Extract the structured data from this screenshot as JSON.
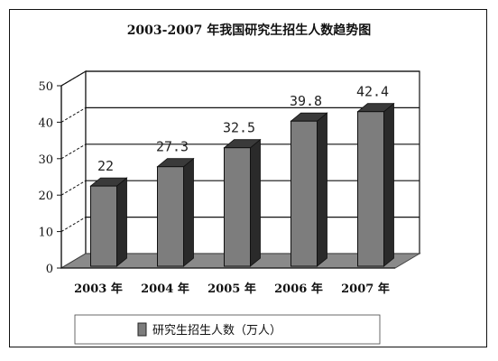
{
  "chart_data": {
    "type": "bar",
    "title": "2003-2007 年我国研究生招生人数趋势图",
    "categories": [
      "2003 年",
      "2004 年",
      "2005 年",
      "2006 年",
      "2007 年"
    ],
    "series": [
      {
        "name": "研究生招生人数（万人）",
        "values": [
          22,
          27.3,
          32.5,
          39.8,
          42.4
        ]
      }
    ],
    "data_labels": [
      "22",
      "27.3",
      "32.5",
      "39.8",
      "42.4"
    ],
    "yticks": [
      "0",
      "10",
      "20",
      "30",
      "40",
      "50"
    ],
    "ylim": [
      0,
      50
    ],
    "xlabel": "",
    "ylabel": "",
    "grid": true,
    "three_d": true,
    "legend_position": "bottom",
    "colors": {
      "bar_front": "#7d7d7d",
      "bar_side": "#2a2a2a",
      "bar_top": "#3a3a3a",
      "back_wall": "#ffffff",
      "floor": "#8a8a8a",
      "grid": "#111111"
    }
  }
}
